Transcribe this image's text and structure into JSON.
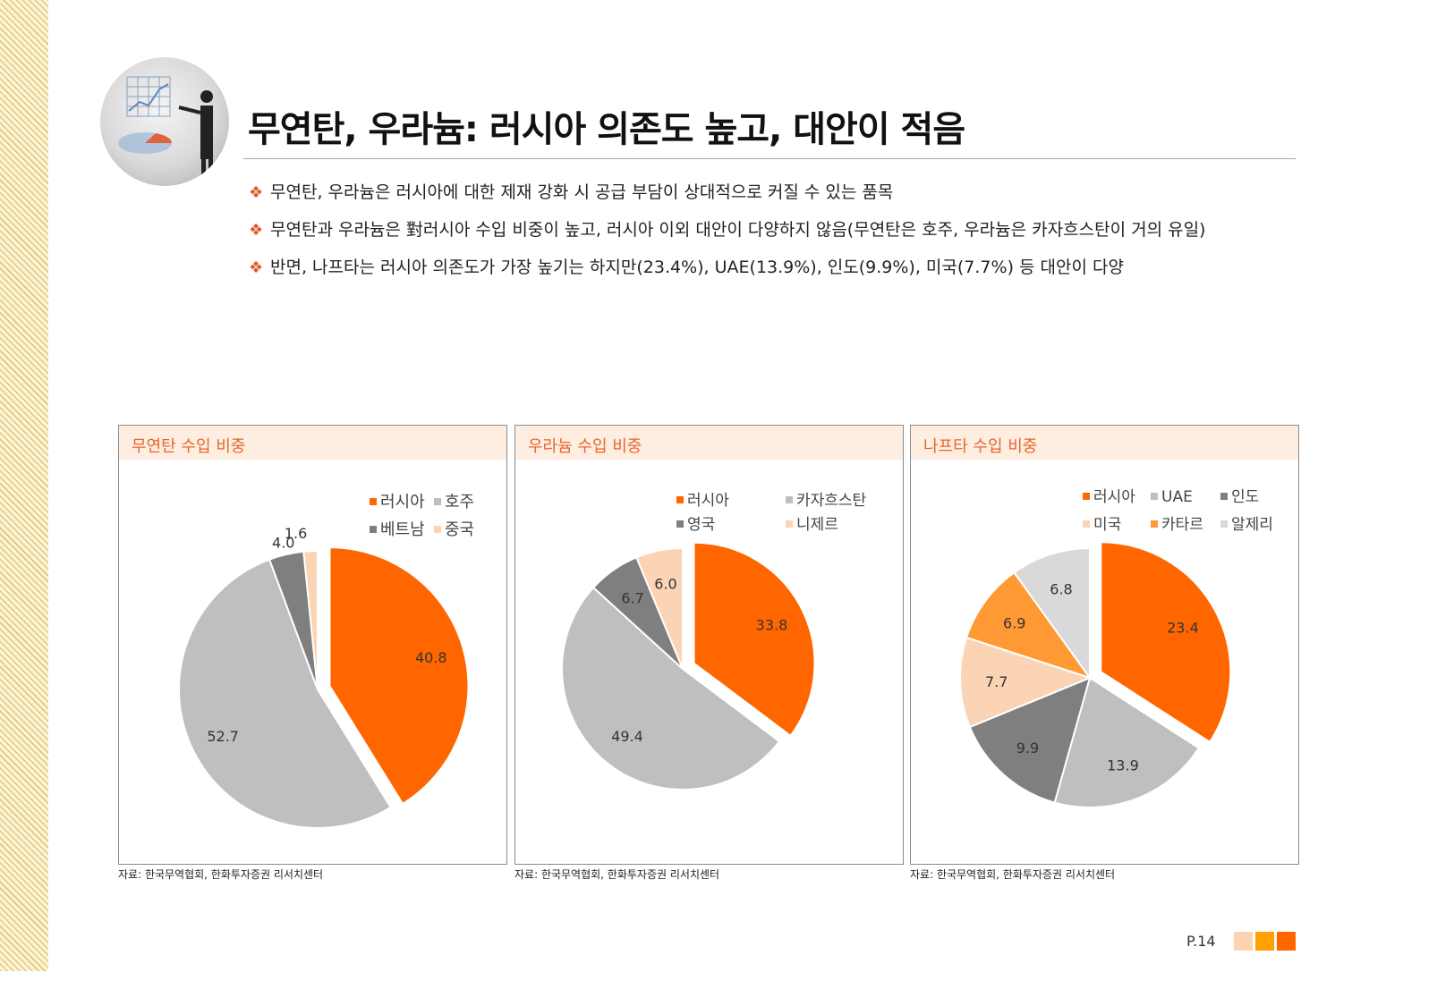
{
  "title": "무연탄, 우라늄: 러시아 의존도 높고, 대안이 적음",
  "bullets": [
    "무연탄, 우라늄은 러시아에 대한 제재 강화 시 공급 부담이 상대적으로 커질 수 있는 품목",
    "무연탄과 우라늄은 對러시아 수입 비중이 높고, 러시아 이외 대안이 다양하지 않음(무연탄은 호주, 우라늄은 카자흐스탄이 거의 유일)",
    "반면, 나프타는 러시아 의존도가 가장 높기는 하지만(23.4%), UAE(13.9%), 인도(9.9%), 미국(7.7%) 등 대안이 다양"
  ],
  "bullet_mark": "❖",
  "source": "자료: 한국무역협회, 한화투자증권 리서치센터",
  "page_number": "P.14",
  "colors": {
    "accent": "#ff6600",
    "gray_light": "#bfbfbf",
    "gray_dark": "#7f7f7f",
    "peach": "#fbd3b5",
    "orange_mid": "#ff9933",
    "gray_pale": "#d9d9d9",
    "header_bg": "#fdeee1",
    "header_text": "#e8662a"
  },
  "footer_squares": [
    "#fbd3b5",
    "#ffa000",
    "#ff6600"
  ],
  "chart_data": [
    {
      "type": "pie",
      "title": "무연탄 수입 비중",
      "categories": [
        "러시아",
        "호주",
        "베트남",
        "중국"
      ],
      "values": [
        40.8,
        52.7,
        4.0,
        1.6
      ],
      "labels": [
        "40.8",
        "52.7",
        "4.0",
        "1.6"
      ],
      "colors": [
        "#ff6600",
        "#bfbfbf",
        "#7f7f7f",
        "#fbd3b5"
      ],
      "exploded": "러시아",
      "legend": "top-right"
    },
    {
      "type": "pie",
      "title": "우라늄 수입 비중",
      "categories": [
        "러시아",
        "카자흐스탄",
        "영국",
        "니제르"
      ],
      "values": [
        33.8,
        49.4,
        6.7,
        6.0
      ],
      "labels": [
        "33.8",
        "49.4",
        "6.7",
        "6.0"
      ],
      "colors": [
        "#ff6600",
        "#bfbfbf",
        "#7f7f7f",
        "#fbd3b5"
      ],
      "exploded": "러시아",
      "legend": "top-right"
    },
    {
      "type": "pie",
      "title": "나프타 수입 비중",
      "categories": [
        "러시아",
        "UAE",
        "인도",
        "미국",
        "카타르",
        "알제리"
      ],
      "values": [
        23.4,
        13.9,
        9.9,
        7.7,
        6.9,
        6.8
      ],
      "labels": [
        "23.4",
        "13.9",
        "9.9",
        "7.7",
        "6.9",
        "6.8"
      ],
      "colors": [
        "#ff6600",
        "#bfbfbf",
        "#7f7f7f",
        "#fbd3b5",
        "#ff9933",
        "#d9d9d9"
      ],
      "exploded": "러시아",
      "legend": "top-right"
    }
  ]
}
